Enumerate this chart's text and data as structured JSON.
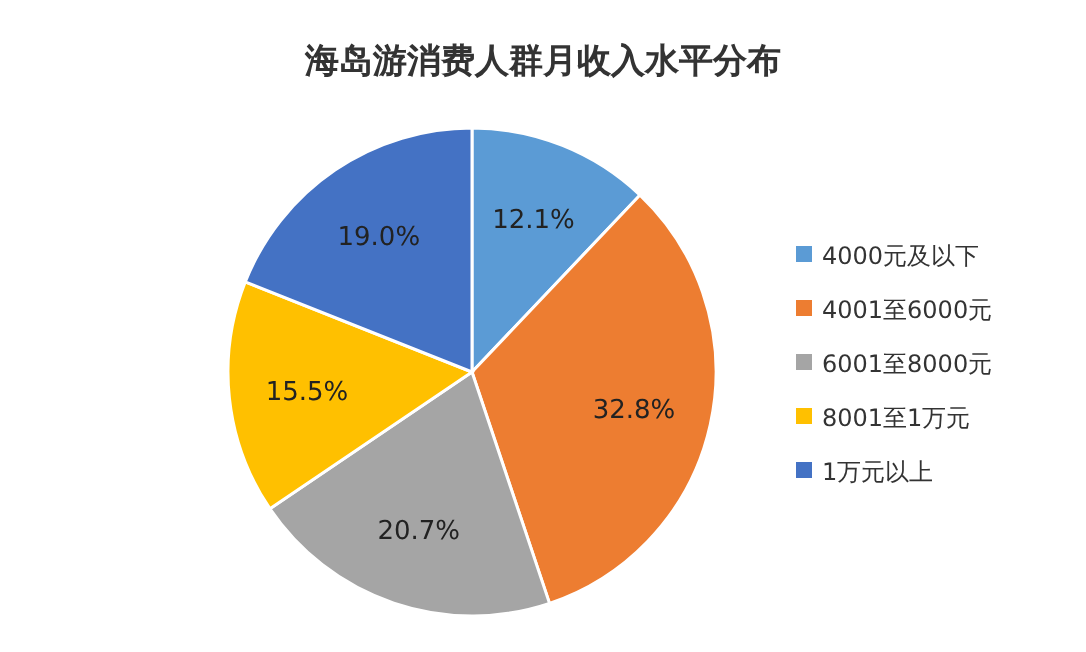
{
  "chart_data": {
    "type": "pie",
    "title": "海岛游消费人群月收入水平分布",
    "categories": [
      "4000元及以下",
      "4001至6000元",
      "6001至8000元",
      "8001至1万元",
      "1万元以上"
    ],
    "values": [
      12.1,
      32.8,
      20.7,
      15.5,
      19.0
    ],
    "colors": [
      "#5b9bd5",
      "#ed7d31",
      "#a5a5a5",
      "#ffc000",
      "#4472c4"
    ],
    "value_labels": [
      "12.1%",
      "32.8%",
      "20.7%",
      "15.5%",
      "19.0%"
    ],
    "legend": "right"
  }
}
